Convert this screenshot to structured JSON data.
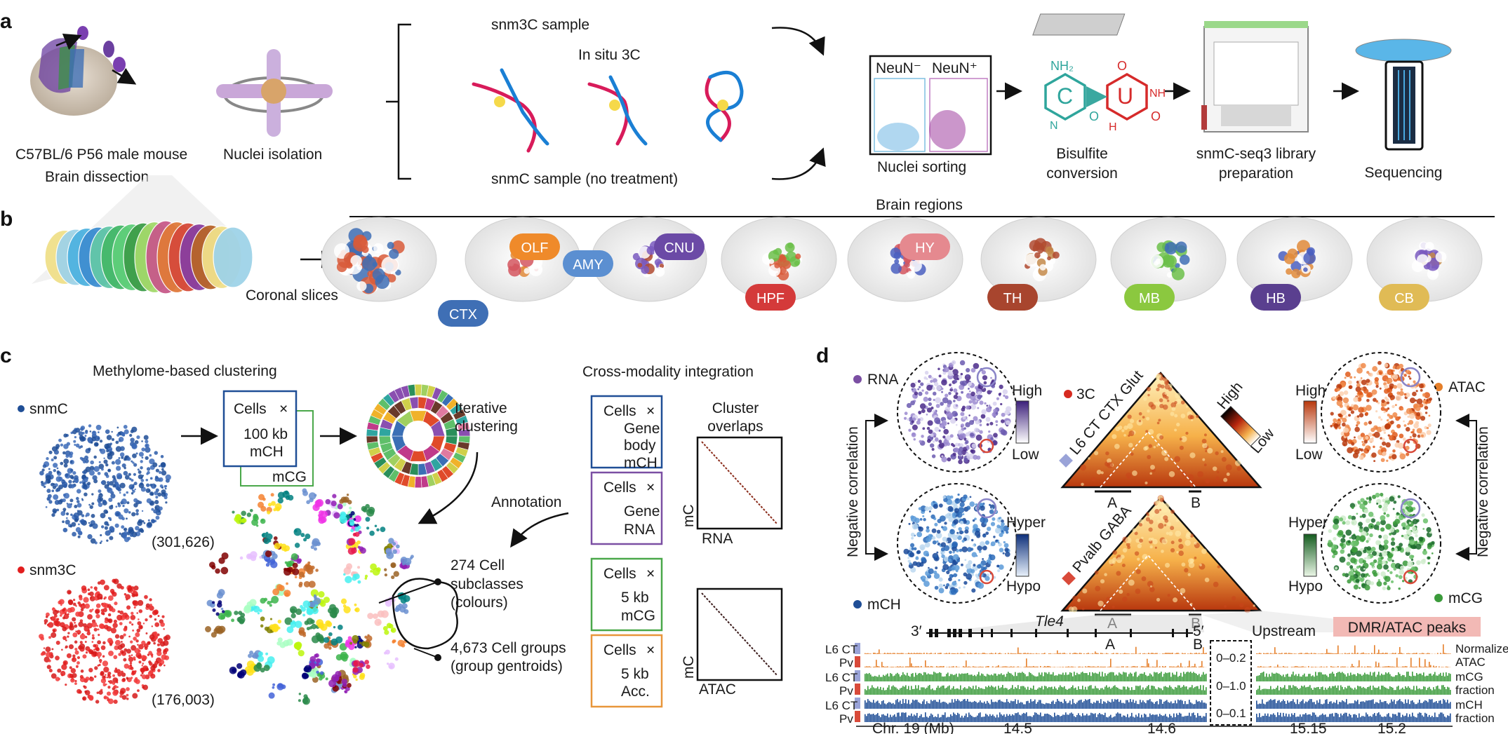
{
  "panels": {
    "a": "a",
    "b": "b",
    "c": "c",
    "d": "d"
  },
  "a": {
    "mouse": "C57BL/6 P56 male mouse",
    "dissection": "Brain dissection",
    "nuclei_isolation": "Nuclei isolation",
    "snm3c_sample": "snm3C sample",
    "in_situ_3c": "In situ 3C",
    "snmc_sample": "snmC sample (no treatment)",
    "neun_neg": "NeuN⁻",
    "neun_pos": "NeuN⁺",
    "nuclei_sorting": "Nuclei sorting",
    "nh2": "NH₂",
    "c": "C",
    "u": "U",
    "o": "O",
    "nh": "NH",
    "n": "N",
    "h": "H",
    "bisulfite_1": "Bisulfite",
    "bisulfite_2": "conversion",
    "library_1": "snmC-seq3 library",
    "library_2": "preparation",
    "sequencing": "Sequencing"
  },
  "b": {
    "brain_regions": "Brain regions",
    "coronal_slices": "Coronal slices",
    "regions": [
      {
        "label": "CTX",
        "color": "#3f6fb5"
      },
      {
        "label": "OLF",
        "color": "#ef8a2a"
      },
      {
        "label": "AMY",
        "color": "#5b8fd1"
      },
      {
        "label": "CNU",
        "color": "#6b4aa6"
      },
      {
        "label": "HPF",
        "color": "#d43a3a"
      },
      {
        "label": "HY",
        "color": "#e5898f"
      },
      {
        "label": "TH",
        "color": "#a8452e"
      },
      {
        "label": "MB",
        "color": "#8bc83f"
      },
      {
        "label": "HB",
        "color": "#5a3f8f"
      },
      {
        "label": "CB",
        "color": "#e0bb55"
      }
    ]
  },
  "c": {
    "methylome_title": "Methylome-based clustering",
    "snmc": "snmC",
    "snmc_count": "(301,626)",
    "snm3c": "snm3C",
    "snm3c_count": "(176,003)",
    "cells": "Cells",
    "times": "×",
    "kb100": "100 kb",
    "mch": "mCH",
    "mcg": "mCG",
    "iterative_1": "Iterative",
    "iterative_2": "clustering",
    "annotation": "Annotation",
    "subclasses_1": "274 Cell",
    "subclasses_2": "subclasses",
    "subclasses_3": "(colours)",
    "groups_1": "4,673 Cell groups",
    "groups_2": "(group gentroids)",
    "cross_title": "Cross-modality integration",
    "cluster_overlaps_1": "Cluster",
    "cluster_overlaps_2": "overlaps",
    "gene": "Gene",
    "body": "body",
    "rna": "RNA",
    "kb5": "5 kb",
    "acc": "Acc.",
    "atac": "ATAC",
    "mc": "mC"
  },
  "d": {
    "rna": "RNA",
    "atac": "ATAC",
    "mch": "mCH",
    "mcg": "mCG",
    "threec": "3C",
    "high": "High",
    "low": "Low",
    "hyper": "Hyper",
    "hypo": "Hypo",
    "l6": "L6 CT CTX Glut",
    "pvalb": "Pvalb GABA",
    "neg_corr": "Negative correlation",
    "a": "A",
    "b": "B",
    "three_prime": "3′",
    "five_prime": "5′",
    "gene": "Tle4",
    "upstream": "Upstream",
    "dmr": "DMR/ATAC peaks",
    "row_l6": "L6 CT",
    "row_pv": "Pv",
    "range_atac": "0–0.2",
    "range_mcg": "0–1.0",
    "range_mch": "0–0.1",
    "track_1a": "Normalized",
    "track_1b": "ATAC",
    "track_2a": "mCG",
    "track_2b": "fraction",
    "track_3a": "mCH",
    "track_3b": "fraction",
    "axis_chr": "Chr. 19 (Mb)",
    "ticks": [
      "14.5",
      "14.6",
      "15.15",
      "15.2"
    ],
    "colors": {
      "rna": "#7b4fa3",
      "atac": "#e57f2a",
      "mch": "#1f4e96",
      "mcg": "#3b9b3b",
      "threec": "#d62a20",
      "l6": "#9aa3d8",
      "pv": "#d94a3a"
    }
  }
}
